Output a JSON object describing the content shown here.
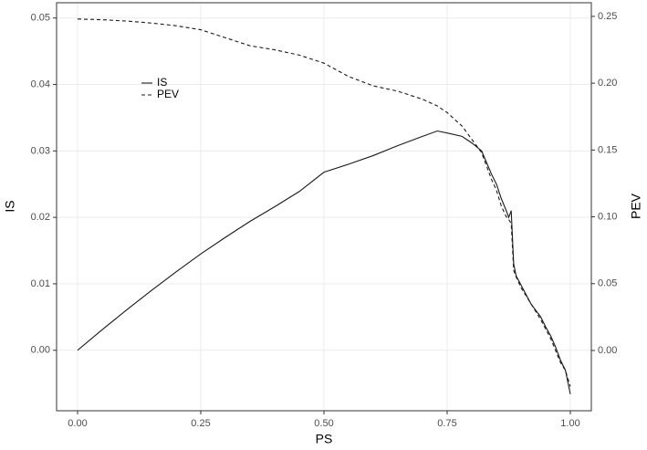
{
  "chart_data": {
    "type": "line",
    "x_label": "PS",
    "y_label": "IS",
    "y2_label": "PEV",
    "x": [
      0,
      0.05,
      0.1,
      0.15,
      0.2,
      0.25,
      0.3,
      0.35,
      0.4,
      0.45,
      0.5,
      0.55,
      0.6,
      0.65,
      0.7,
      0.73,
      0.75,
      0.78,
      0.8,
      0.82,
      0.84,
      0.85,
      0.86,
      0.87,
      0.875,
      0.88,
      0.885,
      0.89,
      0.9,
      0.92,
      0.94,
      0.95,
      0.96,
      0.97,
      0.98,
      0.99,
      1.0
    ],
    "series": [
      {
        "name": "IS",
        "color": "#1a1a1a",
        "linestyle": "solid",
        "values": [
          0,
          0.0031,
          0.0061,
          0.009,
          0.0118,
          0.0145,
          0.017,
          0.0194,
          0.0216,
          0.0239,
          0.0268,
          0.028,
          0.0293,
          0.0308,
          0.0322,
          0.033,
          0.0327,
          0.0322,
          0.0312,
          0.03,
          0.0265,
          0.025,
          0.0228,
          0.021,
          0.02,
          0.021,
          0.013,
          0.0112,
          0.0098,
          0.007,
          0.005,
          0.0035,
          0.0022,
          0.0005,
          -0.0015,
          -0.003,
          -0.0066
        ]
      },
      {
        "name": "PEV",
        "color": "#1a1a1a",
        "linestyle": "dashed",
        "axis": "y2",
        "values": [
          0.248,
          0.2475,
          0.2465,
          0.245,
          0.243,
          0.24,
          0.234,
          0.228,
          0.225,
          0.221,
          0.215,
          0.205,
          0.198,
          0.194,
          0.188,
          0.183,
          0.178,
          0.168,
          0.158,
          0.148,
          0.128,
          0.12,
          0.108,
          0.1,
          0.098,
          0.095,
          0.06,
          0.055,
          0.047,
          0.035,
          0.023,
          0.016,
          0.009,
          0,
          -0.009,
          -0.015,
          -0.027
        ]
      }
    ],
    "xlim": [
      -0.0426,
      1.0426
    ],
    "xticks": [
      {
        "value": 0,
        "label": "0.00"
      },
      {
        "value": 0.25,
        "label": "0.25"
      },
      {
        "value": 0.5,
        "label": "0.50"
      },
      {
        "value": 0.75,
        "label": "0.75"
      },
      {
        "value": 1,
        "label": "1.00"
      }
    ],
    "ylim": [
      -0.0091,
      0.0523
    ],
    "yticks": [
      {
        "value": 0,
        "label": "0.00"
      },
      {
        "value": 0.01,
        "label": "0.01"
      },
      {
        "value": 0.02,
        "label": "0.02"
      },
      {
        "value": 0.03,
        "label": "0.03"
      },
      {
        "value": 0.04,
        "label": "0.04"
      },
      {
        "value": 0.05,
        "label": "0.05"
      }
    ],
    "y2lim": [
      -0.0451,
      0.2602
    ],
    "y2ticks": [
      {
        "value": 0,
        "label": "0.00"
      },
      {
        "value": 0.05,
        "label": "0.05"
      },
      {
        "value": 0.1,
        "label": "0.10"
      },
      {
        "value": 0.15,
        "label": "0.15"
      },
      {
        "value": 0.2,
        "label": "0.20"
      },
      {
        "value": 0.25,
        "label": "0.25"
      }
    ],
    "grid": true,
    "legend_position": "top-left"
  }
}
